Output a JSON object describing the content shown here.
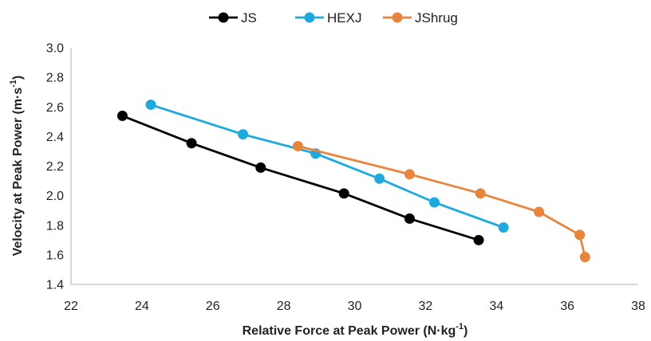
{
  "chart_data": {
    "type": "line",
    "xlabel": "Relative Force at Peak Power (N·kg",
    "xlabel_sup": "-1",
    "xlabel_tail": ")",
    "ylabel": "Velocity at Peak Power (m·s",
    "ylabel_sup": "-1",
    "ylabel_tail": ")",
    "xlim": [
      22,
      38
    ],
    "ylim": [
      1.4,
      3.0
    ],
    "xticks": [
      "22",
      "24",
      "26",
      "28",
      "30",
      "32",
      "34",
      "36",
      "38"
    ],
    "yticks": [
      "1.4",
      "1.6",
      "1.8",
      "2.0",
      "2.2",
      "2.4",
      "2.6",
      "2.8",
      "3.0"
    ],
    "grid": false,
    "legend_position": "top-center",
    "series": [
      {
        "name": "JS",
        "color": "#000000",
        "x": [
          23.45,
          25.4,
          27.35,
          29.7,
          31.55,
          33.5
        ],
        "y": [
          2.54,
          2.355,
          2.19,
          2.015,
          1.845,
          1.7
        ]
      },
      {
        "name": "HEXJ",
        "color": "#1eaadc",
        "x": [
          24.25,
          26.85,
          28.9,
          30.7,
          32.25,
          34.2
        ],
        "y": [
          2.615,
          2.415,
          2.285,
          2.115,
          1.955,
          1.785
        ]
      },
      {
        "name": "JShrug",
        "color": "#e8843c",
        "x": [
          28.4,
          31.55,
          33.55,
          35.2,
          36.35,
          36.5
        ],
        "y": [
          2.335,
          2.145,
          2.015,
          1.89,
          1.735,
          1.585
        ]
      }
    ]
  }
}
